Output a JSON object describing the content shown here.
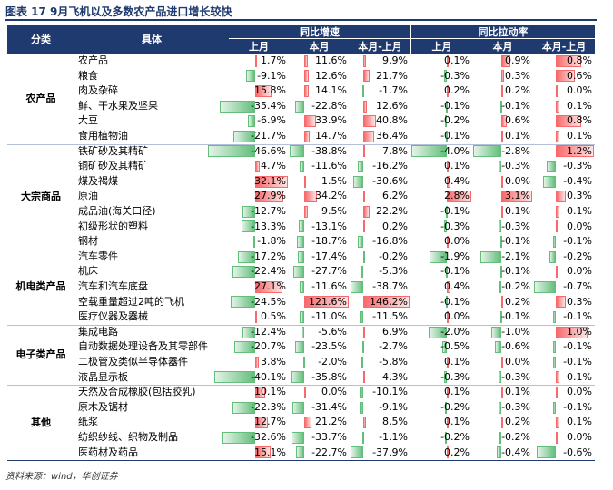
{
  "title": "图表 17   9月飞机以及多数农产品进口增长较快",
  "source": "资料来源：wind，华创证券",
  "header": {
    "category": "分类",
    "item": "具体",
    "groups": [
      "同比增速",
      "同比拉动率"
    ],
    "sub_headers": [
      "上月",
      "本月",
      "本月-上月",
      "上月",
      "本月",
      "本月-上月"
    ]
  },
  "table": {
    "groups": [
      {
        "name": "农产品",
        "rows": [
          {
            "item": "农产品",
            "values": [
              "1.7%",
              "11.6%",
              "9.9%",
              "0.1%",
              "0.9%",
              "0.8%"
            ]
          },
          {
            "item": "粮食",
            "values": [
              "-9.1%",
              "12.6%",
              "21.7%",
              "-0.3%",
              "0.3%",
              "0.6%"
            ]
          },
          {
            "item": "肉及杂碎",
            "values": [
              "15.8%",
              "14.1%",
              "-1.7%",
              "0.2%",
              "0.2%",
              "0.0%"
            ]
          },
          {
            "item": "鲜、干水果及坚果",
            "values": [
              "-35.4%",
              "-22.8%",
              "12.6%",
              "-0.1%",
              "-0.1%",
              "0.1%"
            ]
          },
          {
            "item": "大豆",
            "values": [
              "-6.9%",
              "33.9%",
              "40.8%",
              "-0.2%",
              "0.6%",
              "0.8%"
            ]
          },
          {
            "item": "食用植物油",
            "values": [
              "-21.7%",
              "14.7%",
              "36.4%",
              "-0.1%",
              "0.1%",
              "0.1%"
            ]
          }
        ]
      },
      {
        "name": "大宗商品",
        "rows": [
          {
            "item": "铁矿砂及其精矿",
            "values": [
              "-46.6%",
              "-38.8%",
              "7.8%",
              "-4.0%",
              "-2.8%",
              "1.2%"
            ]
          },
          {
            "item": "铜矿砂及其精矿",
            "values": [
              "4.7%",
              "-11.6%",
              "-16.2%",
              "0.1%",
              "-0.3%",
              "-0.3%"
            ]
          },
          {
            "item": "煤及褐煤",
            "values": [
              "32.1%",
              "1.5%",
              "-30.6%",
              "0.4%",
              "0.0%",
              "-0.4%"
            ]
          },
          {
            "item": "原油",
            "values": [
              "27.9%",
              "34.2%",
              "6.2%",
              "2.8%",
              "3.1%",
              "0.3%"
            ]
          },
          {
            "item": "成品油(海关口径)",
            "values": [
              "-12.7%",
              "9.5%",
              "22.2%",
              "-0.1%",
              "0.1%",
              "0.1%"
            ]
          },
          {
            "item": "初级形状的塑料",
            "values": [
              "-13.3%",
              "-13.1%",
              "0.2%",
              "-0.3%",
              "-0.3%",
              "0.0%"
            ]
          },
          {
            "item": "钢材",
            "values": [
              "-1.8%",
              "-18.7%",
              "-16.8%",
              "0.0%",
              "-0.1%",
              "-0.1%"
            ]
          }
        ]
      },
      {
        "name": "机电类产品",
        "rows": [
          {
            "item": "汽车零件",
            "values": [
              "-17.2%",
              "-17.4%",
              "-0.2%",
              "-1.9%",
              "-2.1%",
              "-0.2%"
            ]
          },
          {
            "item": "机床",
            "values": [
              "-22.4%",
              "-27.7%",
              "-5.3%",
              "-0.1%",
              "-0.1%",
              "0.0%"
            ]
          },
          {
            "item": "汽车和汽车底盘",
            "values": [
              "27.1%",
              "-11.6%",
              "-38.7%",
              "0.4%",
              "-0.2%",
              "-0.7%"
            ]
          },
          {
            "item": "空载重量超过2吨的飞机",
            "values": [
              "-24.5%",
              "121.6%",
              "146.2%",
              "-0.1%",
              "0.2%",
              "0.3%"
            ]
          },
          {
            "item": "医疗仪器及器械",
            "values": [
              "0.5%",
              "-11.0%",
              "-11.5%",
              "0.0%",
              "-0.1%",
              "-0.1%"
            ]
          }
        ]
      },
      {
        "name": "电子类产品",
        "rows": [
          {
            "item": "集成电路",
            "values": [
              "-12.4%",
              "-5.6%",
              "6.9%",
              "-2.0%",
              "-1.0%",
              "1.0%"
            ]
          },
          {
            "item": "自动数据处理设备及其零部件",
            "values": [
              "-20.7%",
              "-23.5%",
              "-2.7%",
              "-0.5%",
              "-0.6%",
              "-0.1%"
            ]
          },
          {
            "item": "二极管及类似半导体器件",
            "values": [
              "3.8%",
              "-2.0%",
              "-5.8%",
              "0.1%",
              "0.0%",
              "-0.1%"
            ]
          },
          {
            "item": "液晶显示板",
            "values": [
              "-40.1%",
              "-35.8%",
              "4.3%",
              "-0.3%",
              "-0.3%",
              "0.1%"
            ]
          }
        ]
      },
      {
        "name": "其他",
        "rows": [
          {
            "item": "天然及合成橡胶(包括胶乳)",
            "values": [
              "10.1%",
              "0.0%",
              "-10.1%",
              "0.1%",
              "0.1%",
              "0.0%"
            ]
          },
          {
            "item": "原木及锯材",
            "values": [
              "-22.3%",
              "-31.4%",
              "-9.1%",
              "-0.2%",
              "-0.3%",
              "-0.1%"
            ]
          },
          {
            "item": "纸浆",
            "values": [
              "12.7%",
              "21.2%",
              "8.5%",
              "0.1%",
              "0.2%",
              "0.1%"
            ]
          },
          {
            "item": "纺织纱线、织物及制品",
            "values": [
              "-32.6%",
              "-33.7%",
              "-1.1%",
              "-0.2%",
              "-0.2%",
              "0.0%"
            ]
          },
          {
            "item": "医药材及药品",
            "values": [
              "15.1%",
              "-22.7%",
              "-37.9%",
              "0.2%",
              "-0.4%",
              "-0.6%"
            ]
          }
        ]
      }
    ]
  }
}
